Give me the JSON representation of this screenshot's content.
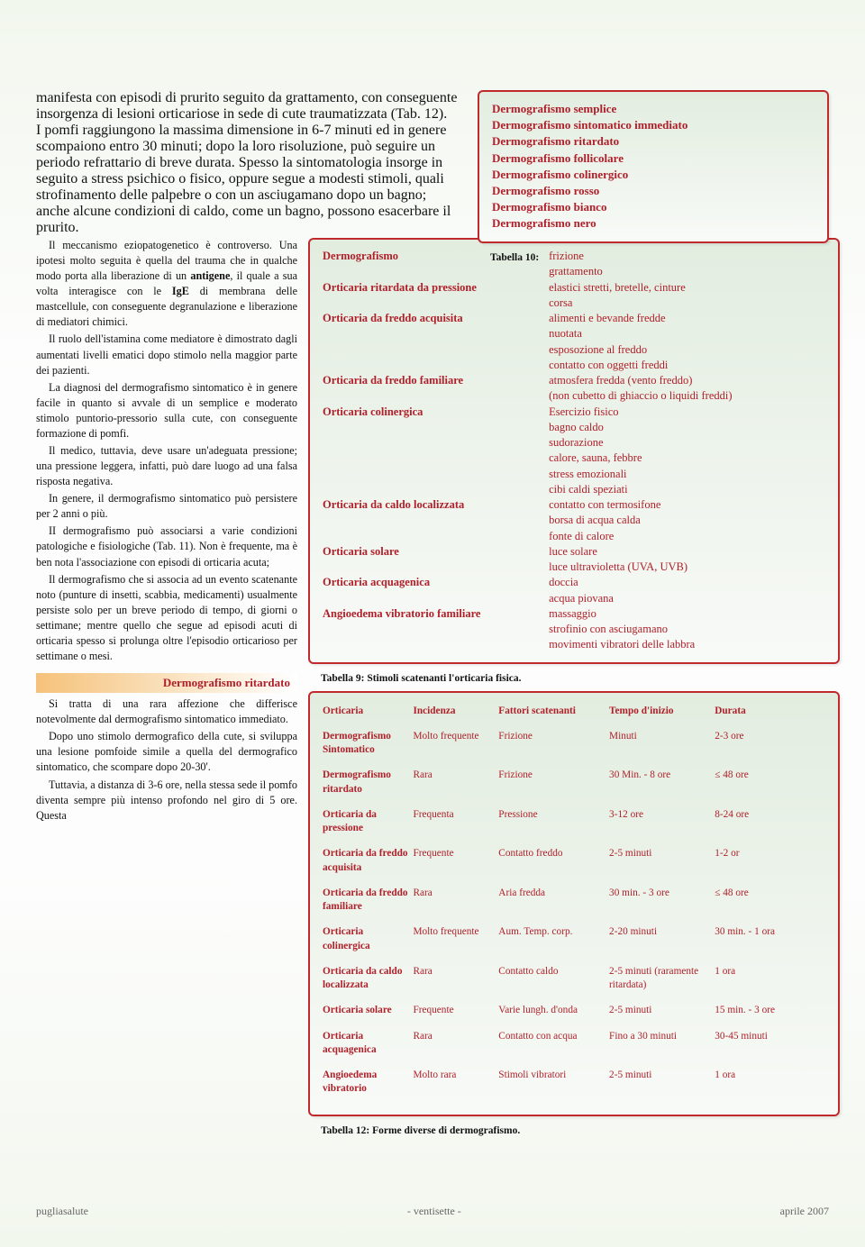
{
  "colors": {
    "accent": "#b0202a",
    "boxBorder": "#c02a2d",
    "boxBg1": "#e2ede0",
    "boxBg2": "#f8faf7",
    "headingGrad1": "#f5c27a",
    "headingGrad2": "#ffffff",
    "text": "#111111",
    "footerText": "#666666",
    "pageBgTop": "#f2f7ee"
  },
  "body": {
    "p1": "manifesta con episodi di prurito seguito da grattamento, con conseguente insorgenza di lesioni orticariose in sede di cute traumatizzata (Tab. 12).",
    "p2": "I pomfi raggiungono la massima dimensione in 6-7 minuti ed in genere scompaiono entro 30 minuti; dopo la loro risoluzione, può seguire un periodo refrattario di breve durata. Spesso la sintomatologia insorge in seguito a stress psichico o fisico, oppure segue a modesti stimoli, quali strofinamento delle palpebre o con un asciugamano dopo un bagno; anche alcune condizioni di caldo, come un bagno, possono esacerbare il prurito.",
    "p3a": "Il meccanismo eziopatogenetico è controverso. Una ipotesi molto seguita è quella del trauma che in qualche modo porta alla liberazione di un ",
    "p3bold1": "antigene",
    "p3b": ", il quale a sua volta interagisce con le ",
    "p3bold2": "IgE",
    "p3c": " di membrana delle mastcellule, con conseguente degranulazione e liberazione di mediatori chimici.",
    "p4": "Il ruolo dell'istamina come mediatore è dimostrato dagli aumentati livelli ematici dopo stimolo nella maggior parte dei pazienti.",
    "p5": "La diagnosi del dermografismo sintomatico è in genere facile in quanto si avvale di un semplice e moderato stimolo puntorio-pressorio sulla cute, con conseguente formazione di pomfi.",
    "p6": "Il medico, tuttavia, deve usare un'adeguata pressione; una pressione leggera, infatti, può dare luogo ad una falsa risposta negativa.",
    "p7": "In genere, il dermografismo sintomatico può persistere per 2 anni o più.",
    "p8": "II dermografismo può associarsi a varie condizioni patologiche e fisiologiche (Tab. 11). Non è frequente, ma è ben nota l'associazione con episodi di orticaria acuta;",
    "p9": "Il dermografismo che si associa ad un evento scatenante noto (punture di insetti, scabbia, medicamenti) usualmente persiste solo per un breve periodo di tempo, di giorni o settimane; mentre quello che segue ad episodi acuti di orticaria spesso si prolunga oltre l'episodio orticarioso per settimane o mesi.",
    "heading1": "Dermografismo ritardato",
    "p10": "Si tratta di una rara affezione che differisce notevolmente dal dermografismo sintomatico immediato.",
    "p11": "Dopo uno stimolo dermografico della cute, si sviluppa una lesione pomfoide simile a quella del dermografico sintomatico, che scompare dopo 20-30'.",
    "p12": "Tuttavia, a distanza di 3-6 ore, nella stessa sede il pomfo diventa sempre più intenso profondo nel giro di 5 ore. Questa"
  },
  "table10": {
    "caption": "Tabella 10:",
    "items": [
      "Dermografismo semplice",
      "Dermografismo sintomatico immediato",
      "Dermografismo ritardato",
      "Dermografismo follicolare",
      "Dermografismo colinergico",
      "Dermografismo rosso",
      "Dermografismo bianco",
      "Dermografismo nero"
    ]
  },
  "table9": {
    "caption": "Tabella 9: Stimoli scatenanti l'orticaria fisica.",
    "rows": [
      {
        "l": "Dermografismo",
        "r": "frizione\ngrattamento"
      },
      {
        "l": "Orticaria ritardata da pressione",
        "r": "elastici stretti, bretelle, cinture\ncorsa"
      },
      {
        "l": "Orticaria da freddo acquisita",
        "r": "alimenti e bevande fredde\nnuotata\nesposozione al freddo\ncontatto con oggetti freddi"
      },
      {
        "l": "Orticaria da freddo familiare",
        "r": "atmosfera fredda (vento freddo)\n(non cubetto di ghiaccio o liquidi freddi)"
      },
      {
        "l": "Orticaria colinergica",
        "r": "Esercizio fisico\nbagno caldo\nsudorazione\ncalore, sauna, febbre\nstress emozionali\ncibi caldi speziati"
      },
      {
        "l": "Orticaria da caldo localizzata",
        "r": "contatto con termosifone\nborsa di acqua calda\nfonte di calore"
      },
      {
        "l": "Orticaria solare",
        "r": "luce solare\nluce ultravioletta (UVA, UVB)"
      },
      {
        "l": "Orticaria acquagenica",
        "r": "doccia\nacqua piovana"
      },
      {
        "l": "Angioedema vibratorio familiare",
        "r": "massaggio\nstrofinio con asciugamano\nmovimenti vibratori delle labbra"
      }
    ]
  },
  "table12": {
    "caption": "Tabella 12: Forme diverse di dermografismo.",
    "headers": [
      "Orticaria",
      "Incidenza",
      "Fattori scatenanti",
      "Tempo d'inizio",
      "Durata"
    ],
    "rows": [
      [
        "Dermografismo Sintomatico",
        "Molto frequente",
        "Frizione",
        "Minuti",
        "2-3 ore"
      ],
      [
        "Dermografismo ritardato",
        "Rara",
        "Frizione",
        "30 Min. - 8 ore",
        "≤ 48 ore"
      ],
      [
        "Orticaria da pressione",
        "Frequenta",
        "Pressione",
        "3-12 ore",
        "8-24 ore"
      ],
      [
        "Orticaria da freddo acquisita",
        "Frequente",
        "Contatto freddo",
        "2-5 minuti",
        "1-2 or"
      ],
      [
        "Orticaria da freddo familiare",
        "Rara",
        "Aria fredda",
        "30 min. - 3 ore",
        "≤ 48 ore"
      ],
      [
        "Orticaria colinergica",
        "Molto frequente",
        "Aum. Temp. corp.",
        "2-20 minuti",
        "30 min. - 1 ora"
      ],
      [
        "Orticaria da caldo localizzata",
        "Rara",
        "Contatto caldo",
        "2-5 minuti (raramente ritardata)",
        "1 ora"
      ],
      [
        "Orticaria solare",
        "Frequente",
        "Varie lungh. d'onda",
        "2-5 minuti",
        "15 min. - 3 ore"
      ],
      [
        "Orticaria acquagenica",
        "Rara",
        "Contatto con acqua",
        "Fino a 30 minuti",
        "30-45 minuti"
      ],
      [
        "Angioedema vibratorio",
        "Molto rara",
        "Stimoli vibratori",
        "2-5 minuti",
        "1 ora"
      ]
    ]
  },
  "footer": {
    "left": "pugliasalute",
    "center": "- ventisette -",
    "right": "aprile 2007"
  }
}
